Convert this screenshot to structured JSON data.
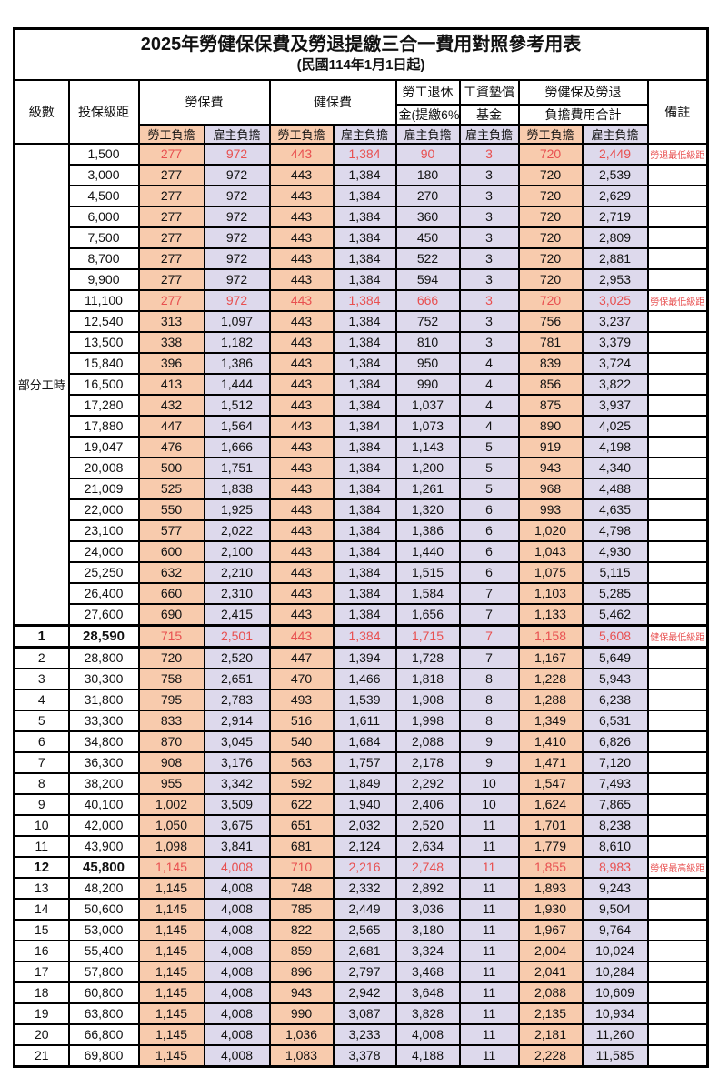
{
  "title": "2025年勞健保保費及勞退提繳三合一費用對照參考用表",
  "subtitle": "(民國114年1月1日起)",
  "colors": {
    "employee_fill": "#F8CBAD",
    "employer_fill": "#DDD9EC",
    "highlight_text": "#E85050",
    "border": "#000000"
  },
  "table": {
    "headers": {
      "grade": "級數",
      "bracket": "投保級距",
      "labor_ins": "勞保費",
      "health_ins": "健保費",
      "pension_l1": "勞工退休",
      "pension_l2": "金(提繳6%)",
      "fund_l1": "工資墊償",
      "fund_l2": "基金",
      "total_l1": "勞健保及勞退",
      "total_l2": "負擔費用合計",
      "remark": "備註",
      "emp": "勞工負擔",
      "er": "雇主負擔"
    },
    "section_label": "部分工時",
    "section_rowspan": 23,
    "value_col_classes": [
      "c-emp",
      "c-er",
      "c-emp",
      "c-er",
      "c-er",
      "c-er",
      "c-emp",
      "c-er"
    ],
    "rows": [
      {
        "grade": null,
        "bracket": "1,500",
        "v": [
          "277",
          "972",
          "443",
          "1,384",
          "90",
          "3",
          "720",
          "2,449"
        ],
        "remark": "勞退最低級距",
        "red": true,
        "bold": false
      },
      {
        "grade": null,
        "bracket": "3,000",
        "v": [
          "277",
          "972",
          "443",
          "1,384",
          "180",
          "3",
          "720",
          "2,539"
        ],
        "remark": "",
        "red": false,
        "bold": false
      },
      {
        "grade": null,
        "bracket": "4,500",
        "v": [
          "277",
          "972",
          "443",
          "1,384",
          "270",
          "3",
          "720",
          "2,629"
        ],
        "remark": "",
        "red": false,
        "bold": false
      },
      {
        "grade": null,
        "bracket": "6,000",
        "v": [
          "277",
          "972",
          "443",
          "1,384",
          "360",
          "3",
          "720",
          "2,719"
        ],
        "remark": "",
        "red": false,
        "bold": false
      },
      {
        "grade": null,
        "bracket": "7,500",
        "v": [
          "277",
          "972",
          "443",
          "1,384",
          "450",
          "3",
          "720",
          "2,809"
        ],
        "remark": "",
        "red": false,
        "bold": false
      },
      {
        "grade": null,
        "bracket": "8,700",
        "v": [
          "277",
          "972",
          "443",
          "1,384",
          "522",
          "3",
          "720",
          "2,881"
        ],
        "remark": "",
        "red": false,
        "bold": false
      },
      {
        "grade": null,
        "bracket": "9,900",
        "v": [
          "277",
          "972",
          "443",
          "1,384",
          "594",
          "3",
          "720",
          "2,953"
        ],
        "remark": "",
        "red": false,
        "bold": false
      },
      {
        "grade": null,
        "bracket": "11,100",
        "v": [
          "277",
          "972",
          "443",
          "1,384",
          "666",
          "3",
          "720",
          "3,025"
        ],
        "remark": "勞保最低級距",
        "red": true,
        "bold": false
      },
      {
        "grade": null,
        "bracket": "12,540",
        "v": [
          "313",
          "1,097",
          "443",
          "1,384",
          "752",
          "3",
          "756",
          "3,237"
        ],
        "remark": "",
        "red": false,
        "bold": false
      },
      {
        "grade": null,
        "bracket": "13,500",
        "v": [
          "338",
          "1,182",
          "443",
          "1,384",
          "810",
          "3",
          "781",
          "3,379"
        ],
        "remark": "",
        "red": false,
        "bold": false
      },
      {
        "grade": null,
        "bracket": "15,840",
        "v": [
          "396",
          "1,386",
          "443",
          "1,384",
          "950",
          "4",
          "839",
          "3,724"
        ],
        "remark": "",
        "red": false,
        "bold": false
      },
      {
        "grade": null,
        "bracket": "16,500",
        "v": [
          "413",
          "1,444",
          "443",
          "1,384",
          "990",
          "4",
          "856",
          "3,822"
        ],
        "remark": "",
        "red": false,
        "bold": false
      },
      {
        "grade": null,
        "bracket": "17,280",
        "v": [
          "432",
          "1,512",
          "443",
          "1,384",
          "1,037",
          "4",
          "875",
          "3,937"
        ],
        "remark": "",
        "red": false,
        "bold": false
      },
      {
        "grade": null,
        "bracket": "17,880",
        "v": [
          "447",
          "1,564",
          "443",
          "1,384",
          "1,073",
          "4",
          "890",
          "4,025"
        ],
        "remark": "",
        "red": false,
        "bold": false
      },
      {
        "grade": null,
        "bracket": "19,047",
        "v": [
          "476",
          "1,666",
          "443",
          "1,384",
          "1,143",
          "5",
          "919",
          "4,198"
        ],
        "remark": "",
        "red": false,
        "bold": false
      },
      {
        "grade": null,
        "bracket": "20,008",
        "v": [
          "500",
          "1,751",
          "443",
          "1,384",
          "1,200",
          "5",
          "943",
          "4,340"
        ],
        "remark": "",
        "red": false,
        "bold": false
      },
      {
        "grade": null,
        "bracket": "21,009",
        "v": [
          "525",
          "1,838",
          "443",
          "1,384",
          "1,261",
          "5",
          "968",
          "4,488"
        ],
        "remark": "",
        "red": false,
        "bold": false
      },
      {
        "grade": null,
        "bracket": "22,000",
        "v": [
          "550",
          "1,925",
          "443",
          "1,384",
          "1,320",
          "6",
          "993",
          "4,635"
        ],
        "remark": "",
        "red": false,
        "bold": false
      },
      {
        "grade": null,
        "bracket": "23,100",
        "v": [
          "577",
          "2,022",
          "443",
          "1,384",
          "1,386",
          "6",
          "1,020",
          "4,798"
        ],
        "remark": "",
        "red": false,
        "bold": false
      },
      {
        "grade": null,
        "bracket": "24,000",
        "v": [
          "600",
          "2,100",
          "443",
          "1,384",
          "1,440",
          "6",
          "1,043",
          "4,930"
        ],
        "remark": "",
        "red": false,
        "bold": false
      },
      {
        "grade": null,
        "bracket": "25,250",
        "v": [
          "632",
          "2,210",
          "443",
          "1,384",
          "1,515",
          "6",
          "1,075",
          "5,115"
        ],
        "remark": "",
        "red": false,
        "bold": false
      },
      {
        "grade": null,
        "bracket": "26,400",
        "v": [
          "660",
          "2,310",
          "443",
          "1,384",
          "1,584",
          "7",
          "1,103",
          "5,285"
        ],
        "remark": "",
        "red": false,
        "bold": false
      },
      {
        "grade": null,
        "bracket": "27,600",
        "v": [
          "690",
          "2,415",
          "443",
          "1,384",
          "1,656",
          "7",
          "1,133",
          "5,462"
        ],
        "remark": "",
        "red": false,
        "bold": false
      },
      {
        "grade": "1",
        "bracket": "28,590",
        "v": [
          "715",
          "2,501",
          "443",
          "1,384",
          "1,715",
          "7",
          "1,158",
          "5,608"
        ],
        "remark": "健保最低級距",
        "red": true,
        "bold": true
      },
      {
        "grade": "2",
        "bracket": "28,800",
        "v": [
          "720",
          "2,520",
          "447",
          "1,394",
          "1,728",
          "7",
          "1,167",
          "5,649"
        ],
        "remark": "",
        "red": false,
        "bold": false
      },
      {
        "grade": "3",
        "bracket": "30,300",
        "v": [
          "758",
          "2,651",
          "470",
          "1,466",
          "1,818",
          "8",
          "1,228",
          "5,943"
        ],
        "remark": "",
        "red": false,
        "bold": false
      },
      {
        "grade": "4",
        "bracket": "31,800",
        "v": [
          "795",
          "2,783",
          "493",
          "1,539",
          "1,908",
          "8",
          "1,288",
          "6,238"
        ],
        "remark": "",
        "red": false,
        "bold": false
      },
      {
        "grade": "5",
        "bracket": "33,300",
        "v": [
          "833",
          "2,914",
          "516",
          "1,611",
          "1,998",
          "8",
          "1,349",
          "6,531"
        ],
        "remark": "",
        "red": false,
        "bold": false
      },
      {
        "grade": "6",
        "bracket": "34,800",
        "v": [
          "870",
          "3,045",
          "540",
          "1,684",
          "2,088",
          "9",
          "1,410",
          "6,826"
        ],
        "remark": "",
        "red": false,
        "bold": false
      },
      {
        "grade": "7",
        "bracket": "36,300",
        "v": [
          "908",
          "3,176",
          "563",
          "1,757",
          "2,178",
          "9",
          "1,471",
          "7,120"
        ],
        "remark": "",
        "red": false,
        "bold": false
      },
      {
        "grade": "8",
        "bracket": "38,200",
        "v": [
          "955",
          "3,342",
          "592",
          "1,849",
          "2,292",
          "10",
          "1,547",
          "7,493"
        ],
        "remark": "",
        "red": false,
        "bold": false
      },
      {
        "grade": "9",
        "bracket": "40,100",
        "v": [
          "1,002",
          "3,509",
          "622",
          "1,940",
          "2,406",
          "10",
          "1,624",
          "7,865"
        ],
        "remark": "",
        "red": false,
        "bold": false
      },
      {
        "grade": "10",
        "bracket": "42,000",
        "v": [
          "1,050",
          "3,675",
          "651",
          "2,032",
          "2,520",
          "11",
          "1,701",
          "8,238"
        ],
        "remark": "",
        "red": false,
        "bold": false
      },
      {
        "grade": "11",
        "bracket": "43,900",
        "v": [
          "1,098",
          "3,841",
          "681",
          "2,124",
          "2,634",
          "11",
          "1,779",
          "8,610"
        ],
        "remark": "",
        "red": false,
        "bold": false
      },
      {
        "grade": "12",
        "bracket": "45,800",
        "v": [
          "1,145",
          "4,008",
          "710",
          "2,216",
          "2,748",
          "11",
          "1,855",
          "8,983"
        ],
        "remark": "勞保最高級距",
        "red": true,
        "bold": true
      },
      {
        "grade": "13",
        "bracket": "48,200",
        "v": [
          "1,145",
          "4,008",
          "748",
          "2,332",
          "2,892",
          "11",
          "1,893",
          "9,243"
        ],
        "remark": "",
        "red": false,
        "bold": false
      },
      {
        "grade": "14",
        "bracket": "50,600",
        "v": [
          "1,145",
          "4,008",
          "785",
          "2,449",
          "3,036",
          "11",
          "1,930",
          "9,504"
        ],
        "remark": "",
        "red": false,
        "bold": false
      },
      {
        "grade": "15",
        "bracket": "53,000",
        "v": [
          "1,145",
          "4,008",
          "822",
          "2,565",
          "3,180",
          "11",
          "1,967",
          "9,764"
        ],
        "remark": "",
        "red": false,
        "bold": false
      },
      {
        "grade": "16",
        "bracket": "55,400",
        "v": [
          "1,145",
          "4,008",
          "859",
          "2,681",
          "3,324",
          "11",
          "2,004",
          "10,024"
        ],
        "remark": "",
        "red": false,
        "bold": false
      },
      {
        "grade": "17",
        "bracket": "57,800",
        "v": [
          "1,145",
          "4,008",
          "896",
          "2,797",
          "3,468",
          "11",
          "2,041",
          "10,284"
        ],
        "remark": "",
        "red": false,
        "bold": false
      },
      {
        "grade": "18",
        "bracket": "60,800",
        "v": [
          "1,145",
          "4,008",
          "943",
          "2,942",
          "3,648",
          "11",
          "2,088",
          "10,609"
        ],
        "remark": "",
        "red": false,
        "bold": false
      },
      {
        "grade": "19",
        "bracket": "63,800",
        "v": [
          "1,145",
          "4,008",
          "990",
          "3,087",
          "3,828",
          "11",
          "2,135",
          "10,934"
        ],
        "remark": "",
        "red": false,
        "bold": false
      },
      {
        "grade": "20",
        "bracket": "66,800",
        "v": [
          "1,145",
          "4,008",
          "1,036",
          "3,233",
          "4,008",
          "11",
          "2,181",
          "11,260"
        ],
        "remark": "",
        "red": false,
        "bold": false
      },
      {
        "grade": "21",
        "bracket": "69,800",
        "v": [
          "1,145",
          "4,008",
          "1,083",
          "3,378",
          "4,188",
          "11",
          "2,228",
          "11,585"
        ],
        "remark": "",
        "red": false,
        "bold": false
      }
    ]
  }
}
